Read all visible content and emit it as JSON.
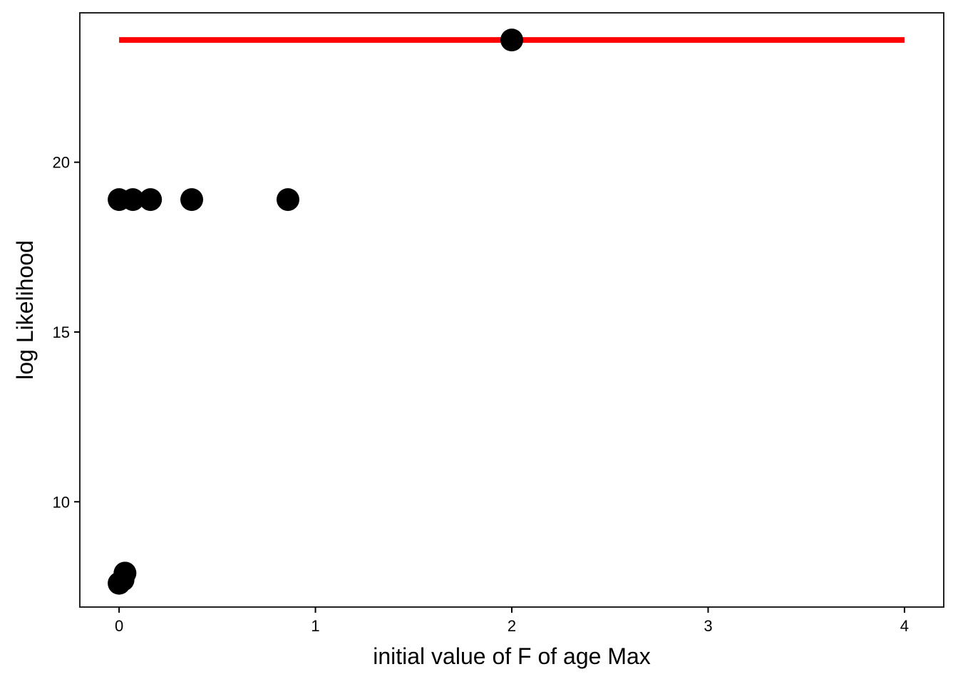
{
  "chart_data": {
    "type": "scatter",
    "title": "",
    "xlabel": "initial value of F of age Max",
    "ylabel": "log Likelihood",
    "xlim": [
      -0.2,
      4.2
    ],
    "ylim": [
      6.9,
      24.4
    ],
    "xticks": [
      0,
      1,
      2,
      3,
      4
    ],
    "yticks": [
      10,
      15,
      20
    ],
    "grid": false,
    "legend": "none",
    "points": [
      {
        "x": 0.0,
        "y": 18.9
      },
      {
        "x": 0.07,
        "y": 18.9
      },
      {
        "x": 0.16,
        "y": 18.9
      },
      {
        "x": 0.37,
        "y": 18.9
      },
      {
        "x": 0.86,
        "y": 18.9
      },
      {
        "x": 2.0,
        "y": 23.6
      },
      {
        "x": 0.0,
        "y": 7.6
      },
      {
        "x": 0.02,
        "y": 7.7
      },
      {
        "x": 0.03,
        "y": 7.9
      }
    ],
    "reference_line": {
      "x_start": 0,
      "x_end": 4,
      "y": 23.6
    },
    "colors": {
      "points": "#000000",
      "reference_line": "#ff0000",
      "axis": "#000000",
      "background": "#ffffff"
    }
  }
}
